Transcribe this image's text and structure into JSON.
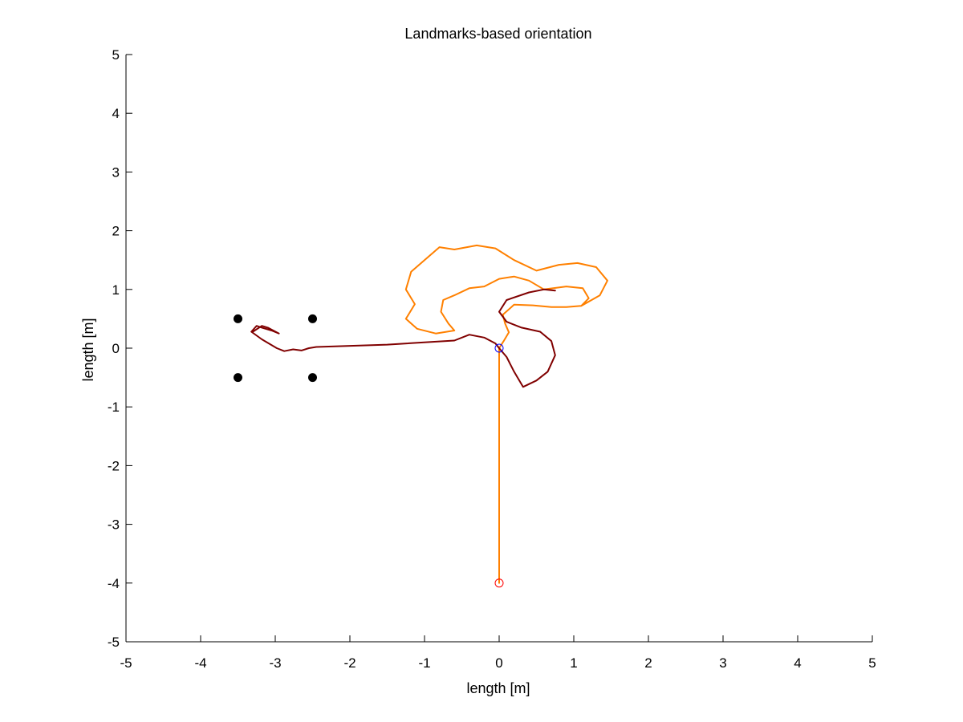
{
  "chart_data": {
    "type": "line",
    "title": "Landmarks-based orientation",
    "xlabel": "length [m]",
    "ylabel": "length [m]",
    "xlim": [
      -5,
      5
    ],
    "ylim": [
      -5,
      5
    ],
    "xticks": [
      -5,
      -4,
      -3,
      -2,
      -1,
      0,
      1,
      2,
      3,
      4,
      5
    ],
    "yticks": [
      -5,
      -4,
      -3,
      -2,
      -1,
      0,
      1,
      2,
      3,
      4,
      5
    ],
    "grid": false,
    "series": [
      {
        "kind": "line",
        "color": "#ff8000",
        "points": [
          [
            0,
            -4
          ],
          [
            0,
            0
          ],
          [
            0.06,
            0.12
          ],
          [
            0.13,
            0.27
          ],
          [
            0.08,
            0.42
          ],
          [
            0.05,
            0.57
          ],
          [
            0.2,
            0.74
          ],
          [
            0.45,
            0.73
          ],
          [
            0.7,
            0.7
          ],
          [
            0.9,
            0.7
          ],
          [
            1.1,
            0.72
          ],
          [
            1.2,
            0.85
          ],
          [
            1.12,
            1.02
          ],
          [
            0.9,
            1.05
          ],
          [
            0.6,
            1.0
          ],
          [
            0.4,
            1.15
          ],
          [
            0.2,
            1.22
          ],
          [
            0.0,
            1.18
          ],
          [
            -0.2,
            1.05
          ],
          [
            -0.4,
            1.02
          ],
          [
            -0.6,
            0.9
          ],
          [
            -0.75,
            0.82
          ],
          [
            -0.78,
            0.62
          ],
          [
            -0.68,
            0.42
          ],
          [
            -0.6,
            0.3
          ],
          [
            -0.85,
            0.25
          ],
          [
            -1.1,
            0.33
          ],
          [
            -1.25,
            0.5
          ],
          [
            -1.13,
            0.75
          ],
          [
            -1.25,
            1.0
          ],
          [
            -1.18,
            1.3
          ],
          [
            -1.0,
            1.5
          ],
          [
            -0.8,
            1.72
          ],
          [
            -0.6,
            1.68
          ],
          [
            -0.3,
            1.75
          ],
          [
            -0.05,
            1.7
          ],
          [
            0.2,
            1.5
          ],
          [
            0.5,
            1.32
          ],
          [
            0.8,
            1.42
          ],
          [
            1.05,
            1.45
          ],
          [
            1.3,
            1.38
          ],
          [
            1.45,
            1.15
          ],
          [
            1.35,
            0.9
          ],
          [
            1.1,
            0.72
          ]
        ]
      },
      {
        "kind": "line",
        "color": "#800000",
        "points": [
          [
            -3.3,
            0.28
          ],
          [
            -3.18,
            0.38
          ],
          [
            -3.1,
            0.35
          ],
          [
            -2.95,
            0.25
          ],
          [
            -3.05,
            0.3
          ],
          [
            -3.18,
            0.35
          ],
          [
            -3.25,
            0.38
          ],
          [
            -3.32,
            0.28
          ],
          [
            -3.18,
            0.15
          ],
          [
            -2.98,
            0.0
          ],
          [
            -2.88,
            -0.05
          ],
          [
            -2.76,
            -0.02
          ],
          [
            -2.65,
            -0.04
          ],
          [
            -2.55,
            0.0
          ],
          [
            -2.45,
            0.02
          ],
          [
            -1.5,
            0.06
          ],
          [
            -0.6,
            0.13
          ],
          [
            -0.4,
            0.23
          ],
          [
            -0.2,
            0.18
          ],
          [
            -0.05,
            0.08
          ],
          [
            0.0,
            0.0
          ],
          [
            0.1,
            -0.15
          ],
          [
            0.2,
            -0.4
          ],
          [
            0.32,
            -0.66
          ],
          [
            0.5,
            -0.55
          ],
          [
            0.65,
            -0.4
          ],
          [
            0.75,
            -0.12
          ],
          [
            0.7,
            0.12
          ],
          [
            0.55,
            0.28
          ],
          [
            0.3,
            0.35
          ],
          [
            0.1,
            0.45
          ],
          [
            0.0,
            0.62
          ],
          [
            0.1,
            0.82
          ],
          [
            0.4,
            0.95
          ],
          [
            0.6,
            1.0
          ],
          [
            0.75,
            0.98
          ]
        ]
      }
    ],
    "markers": [
      {
        "name": "landmark",
        "shape": "filled-circle",
        "color": "#000000",
        "x": -3.5,
        "y": 0.5
      },
      {
        "name": "landmark",
        "shape": "filled-circle",
        "color": "#000000",
        "x": -2.5,
        "y": 0.5
      },
      {
        "name": "landmark",
        "shape": "filled-circle",
        "color": "#000000",
        "x": -3.5,
        "y": -0.5
      },
      {
        "name": "landmark",
        "shape": "filled-circle",
        "color": "#000000",
        "x": -2.5,
        "y": -0.5
      },
      {
        "name": "start",
        "shape": "open-circle",
        "color": "#ff0000",
        "x": 0,
        "y": -4
      },
      {
        "name": "origin",
        "shape": "open-circle",
        "color": "#0000ff",
        "x": 0,
        "y": 0
      }
    ]
  }
}
